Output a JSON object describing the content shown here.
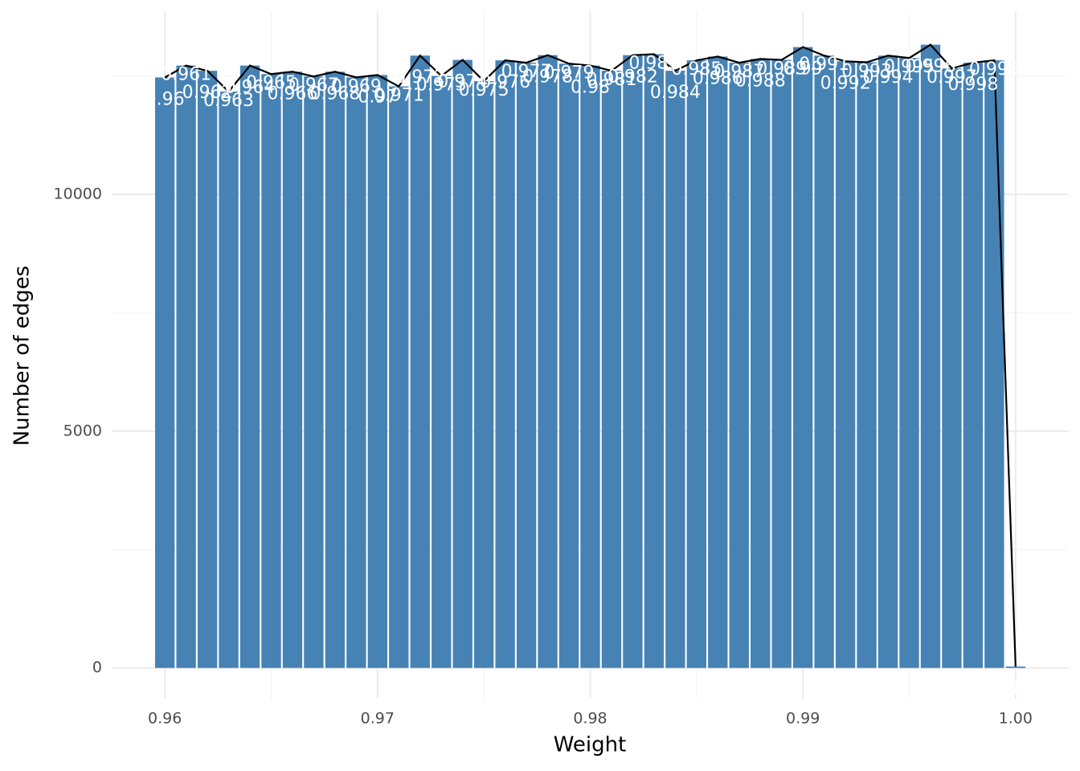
{
  "chart_data": {
    "type": "bar",
    "line": true,
    "line_color": "#000000",
    "color": "#4682b4",
    "x_label": "Weight",
    "y_label": "Number of edges",
    "x": [
      0.96,
      0.961,
      0.962,
      0.963,
      0.964,
      0.965,
      0.966,
      0.967,
      0.968,
      0.969,
      0.97,
      0.971,
      0.972,
      0.973,
      0.974,
      0.975,
      0.976,
      0.977,
      0.978,
      0.979,
      0.98,
      0.981,
      0.982,
      0.983,
      0.984,
      0.985,
      0.986,
      0.987,
      0.988,
      0.989,
      0.99,
      0.991,
      0.992,
      0.993,
      0.994,
      0.995,
      0.996,
      0.997,
      0.998,
      0.999,
      1
    ],
    "values": [
      12470,
      12720,
      12610,
      12170,
      12720,
      12540,
      12590,
      12490,
      12590,
      12470,
      12520,
      12280,
      12930,
      12500,
      12840,
      12390,
      12830,
      12780,
      12940,
      12760,
      12720,
      12610,
      12940,
      12960,
      12610,
      12830,
      12910,
      12780,
      12860,
      12840,
      13110,
      12930,
      12810,
      12790,
      12930,
      12880,
      13160,
      12660,
      12780,
      12830,
      30
    ],
    "xlim": [
      0.9575,
      1.0025
    ],
    "ylim": [
      -650,
      13850
    ],
    "xticks": [
      0.96,
      0.97,
      0.98,
      0.99,
      {
        "value": 1,
        "label": "1.00"
      }
    ],
    "xminorticks": [
      0.965,
      0.975,
      0.985,
      0.995
    ],
    "yticks": [
      0,
      5000,
      10000
    ],
    "yminorticks": [
      2500,
      7500,
      12500
    ],
    "grid": true
  }
}
